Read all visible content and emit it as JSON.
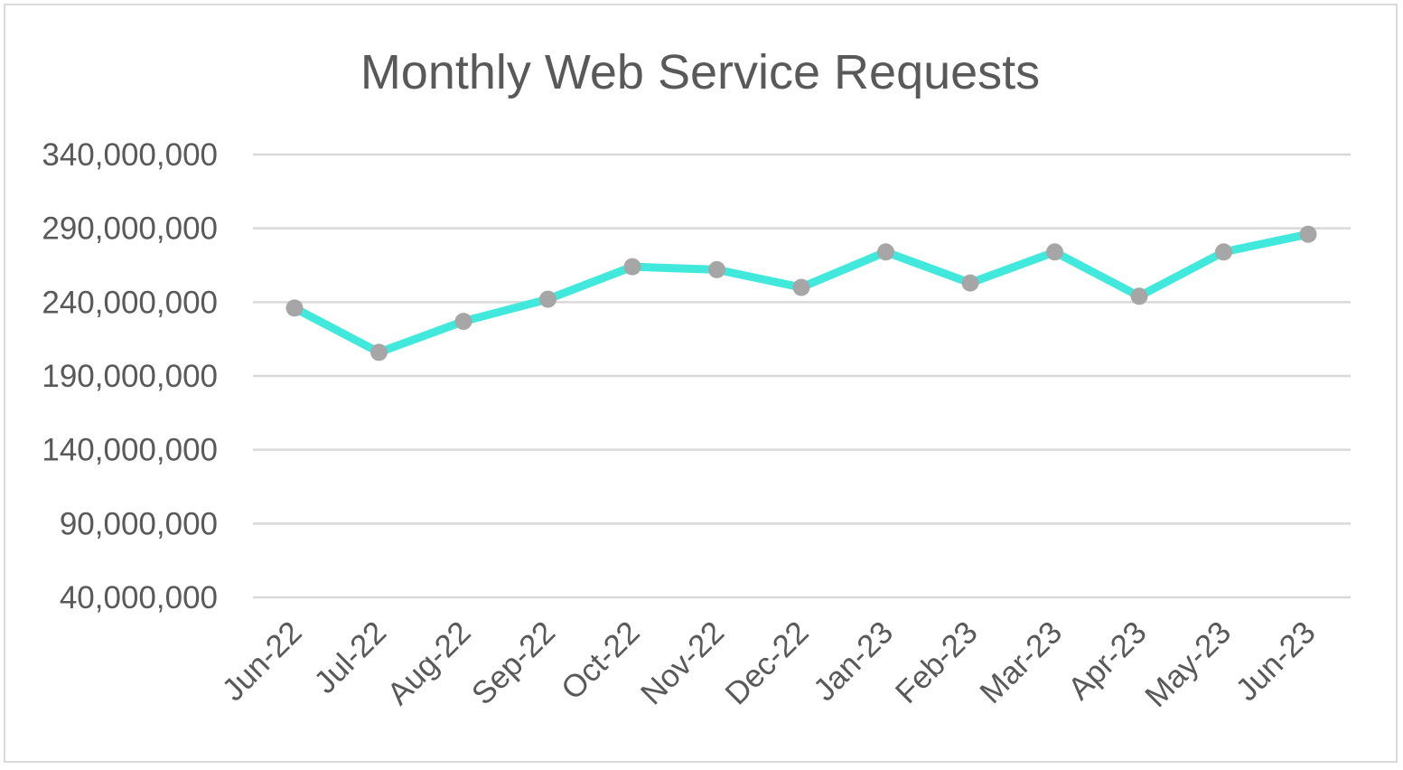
{
  "chart_data": {
    "type": "line",
    "title": "Monthly Web Service Requests",
    "xlabel": "",
    "ylabel": "",
    "categories": [
      "Jun-22",
      "Jul-22",
      "Aug-22",
      "Sep-22",
      "Oct-22",
      "Nov-22",
      "Dec-22",
      "Jan-23",
      "Feb-23",
      "Mar-23",
      "Apr-23",
      "May-23",
      "Jun-23"
    ],
    "series": [
      {
        "values": [
          236000000,
          206000000,
          227000000,
          242000000,
          264000000,
          262000000,
          250000000,
          274000000,
          253000000,
          274000000,
          244000000,
          274000000,
          286000000
        ]
      }
    ],
    "ylim": [
      40000000,
      340000000
    ],
    "yticks": [
      40000000,
      90000000,
      140000000,
      190000000,
      240000000,
      290000000,
      340000000
    ],
    "ytick_labels": [
      "40,000,000",
      "90,000,000",
      "140,000,000",
      "190,000,000",
      "240,000,000",
      "290,000,000",
      "340,000,000"
    ],
    "grid": true,
    "legend": "none",
    "colors": {
      "line": "#40e9dc",
      "marker": "#a6a6a6",
      "grid": "#d9d9d9",
      "text": "#595959"
    }
  }
}
